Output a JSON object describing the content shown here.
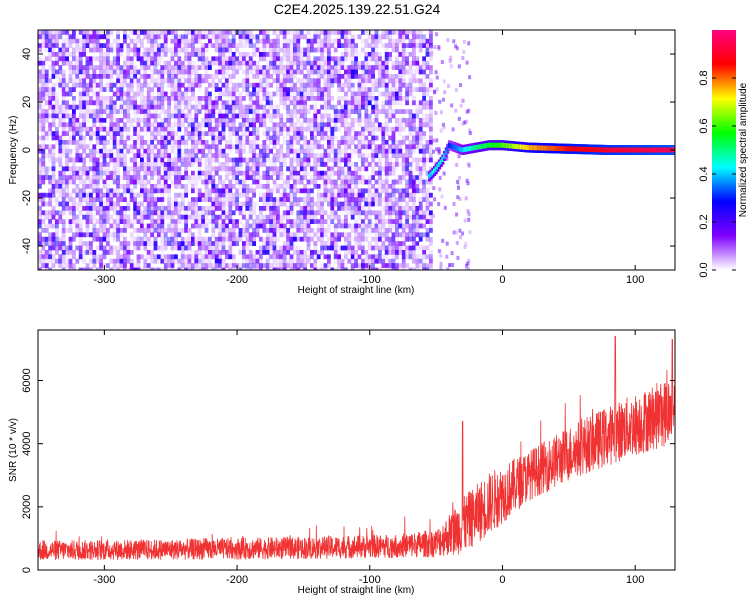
{
  "figure": {
    "title": "C2E4.2025.139.22.51.G24"
  },
  "chart_data": [
    {
      "type": "heatmap",
      "name": "spectrogram",
      "xlabel": "Height of straight line (km)",
      "ylabel": "Frequency (Hz)",
      "xlim": [
        -350,
        130
      ],
      "ylim": [
        -50,
        50
      ],
      "xticks": [
        -300,
        -200,
        -100,
        0,
        100
      ],
      "yticks": [
        -40,
        -20,
        0,
        20,
        40
      ],
      "colorbar": {
        "label": "Normalized spectral amplitude",
        "range": [
          0,
          1
        ],
        "ticks": [
          0.0,
          0.2,
          0.4,
          0.6,
          0.8
        ],
        "colormap": [
          "#ffffff",
          "#8000ff",
          "#0000ff",
          "#00ffff",
          "#00ff00",
          "#ffff00",
          "#ff0000",
          "#ff0080"
        ]
      },
      "noise_region_x": [
        -350,
        -55
      ],
      "noise_amplitude_range": [
        0.0,
        0.25
      ],
      "signal_track": [
        {
          "x": -55,
          "freq": -11,
          "amp": 0.4
        },
        {
          "x": -50,
          "freq": -8,
          "amp": 0.45
        },
        {
          "x": -45,
          "freq": -4,
          "amp": 0.45
        },
        {
          "x": -40,
          "freq": 2,
          "amp": 0.3
        },
        {
          "x": -30,
          "freq": 0,
          "amp": 0.4
        },
        {
          "x": -20,
          "freq": 1,
          "amp": 0.5
        },
        {
          "x": -10,
          "freq": 2,
          "amp": 0.55
        },
        {
          "x": 0,
          "freq": 2,
          "amp": 0.6
        },
        {
          "x": 20,
          "freq": 1,
          "amp": 0.75
        },
        {
          "x": 50,
          "freq": 0.5,
          "amp": 0.85
        },
        {
          "x": 80,
          "freq": 0,
          "amp": 0.9
        },
        {
          "x": 130,
          "freq": 0,
          "amp": 0.95
        }
      ]
    },
    {
      "type": "line",
      "name": "snr",
      "xlabel": "Height of straight line (km)",
      "ylabel": "SNR (10 * v/v)",
      "xlim": [
        -350,
        130
      ],
      "ylim": [
        0,
        7600
      ],
      "xticks": [
        -300,
        -200,
        -100,
        0,
        100
      ],
      "yticks": [
        0,
        2000,
        4000,
        6000
      ],
      "color": "#f03232",
      "trend": [
        {
          "x": -350,
          "mean": 620,
          "spread": 320
        },
        {
          "x": -250,
          "mean": 650,
          "spread": 330
        },
        {
          "x": -150,
          "mean": 700,
          "spread": 360
        },
        {
          "x": -80,
          "mean": 760,
          "spread": 380
        },
        {
          "x": -50,
          "mean": 850,
          "spread": 450
        },
        {
          "x": -30,
          "mean": 1400,
          "spread": 900
        },
        {
          "x": -10,
          "mean": 2100,
          "spread": 1000
        },
        {
          "x": 20,
          "mean": 3000,
          "spread": 800
        },
        {
          "x": 60,
          "mean": 3900,
          "spread": 900
        },
        {
          "x": 100,
          "mean": 4600,
          "spread": 1000
        },
        {
          "x": 130,
          "mean": 5100,
          "spread": 1100
        }
      ],
      "peaks": [
        {
          "x": -30,
          "y": 4700
        },
        {
          "x": 85,
          "y": 7400
        },
        {
          "x": 128,
          "y": 7300
        }
      ]
    }
  ]
}
